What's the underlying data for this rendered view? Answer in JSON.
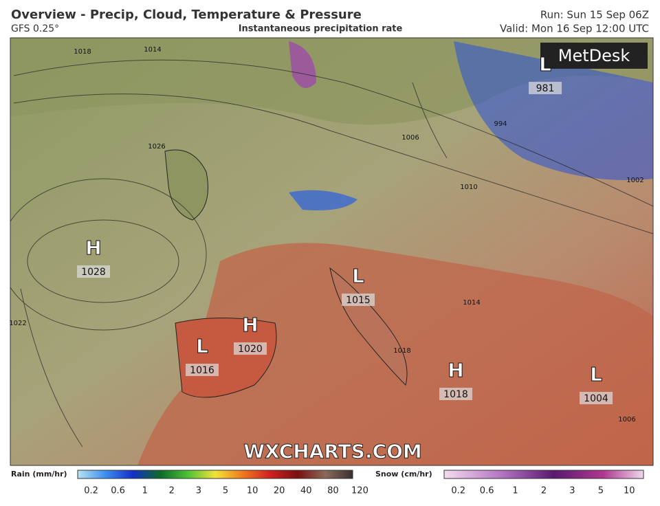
{
  "header": {
    "title": "Overview - Precip, Cloud, Temperature & Pressure",
    "model": "GFS 0.25°",
    "subtitle": "Instantaneous precipitation rate",
    "run": "Run: Sun 15 Sep 06Z",
    "valid": "Valid: Mon 16 Sep 12:00 UTC"
  },
  "map": {
    "logo": "MetDesk",
    "watermark": "WXCHARTS.COM",
    "pressure_centers": [
      {
        "kind": "H",
        "value": 1028
      },
      {
        "kind": "L",
        "value": 1016
      },
      {
        "kind": "H",
        "value": 1020
      },
      {
        "kind": "L",
        "value": 1015
      },
      {
        "kind": "H",
        "value": 1018
      },
      {
        "kind": "L",
        "value": 1004
      },
      {
        "kind": "L",
        "value": 981
      }
    ],
    "isobar_labels": [
      1018,
      1014,
      1026,
      1022,
      1006,
      1010,
      994,
      1002,
      1014,
      1018,
      1006
    ]
  },
  "legend": {
    "rain": {
      "title": "Rain (mm/hr)",
      "ticks": [
        0.2,
        0.6,
        1,
        2,
        3,
        5,
        10,
        20,
        40,
        80,
        120
      ]
    },
    "snow": {
      "title": "Snow (cm/hr)",
      "ticks": [
        0.2,
        0.6,
        1,
        2,
        3,
        5,
        10
      ]
    }
  }
}
